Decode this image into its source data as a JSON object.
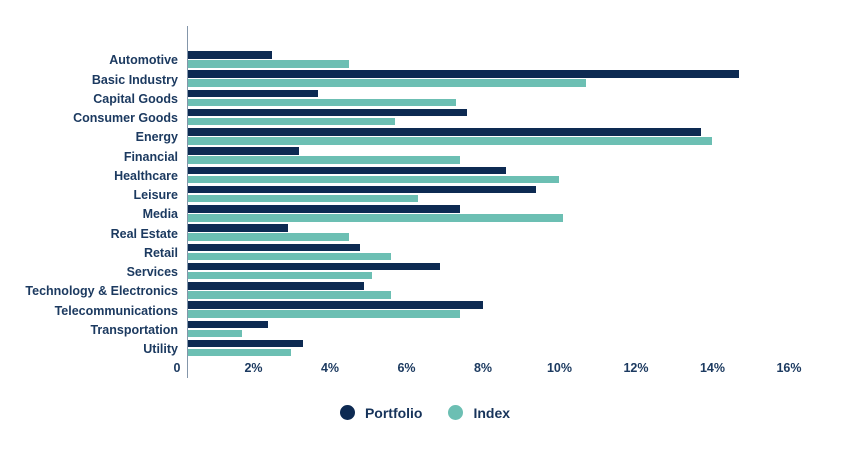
{
  "chart_data": {
    "type": "bar",
    "orientation": "horizontal",
    "title": "",
    "xlabel": "",
    "ylabel": "",
    "grid": false,
    "legend_position": "bottom-center",
    "xlim": [
      0,
      16
    ],
    "x_tick_step_pct": 2,
    "x_ticks": [
      "0",
      "2%",
      "4%",
      "6%",
      "8%",
      "10%",
      "12%",
      "14%",
      "16%"
    ],
    "categories": [
      "Automotive",
      "Basic Industry",
      "Capital Goods",
      "Consumer Goods",
      "Energy",
      "Financial",
      "Healthcare",
      "Leisure",
      "Media",
      "Real Estate",
      "Retail",
      "Services",
      "Technology & Electronics",
      "Telecommunications",
      "Transportation",
      "Utility"
    ],
    "series": [
      {
        "name": "Portfolio",
        "color": "#0d2a52",
        "values": [
          2.2,
          14.4,
          3.4,
          7.3,
          13.4,
          2.9,
          8.3,
          9.1,
          7.1,
          2.6,
          4.5,
          6.6,
          4.6,
          7.7,
          2.1,
          3.0
        ]
      },
      {
        "name": "Index",
        "color": "#6cbfb3",
        "values": [
          4.2,
          10.4,
          7.0,
          5.4,
          13.7,
          7.1,
          9.7,
          6.0,
          9.8,
          4.2,
          5.3,
          4.8,
          5.3,
          7.1,
          1.4,
          2.7
        ]
      }
    ]
  },
  "colors": {
    "text": "#1c3a60",
    "axis_line": "#8496aa",
    "background": "#ffffff"
  }
}
